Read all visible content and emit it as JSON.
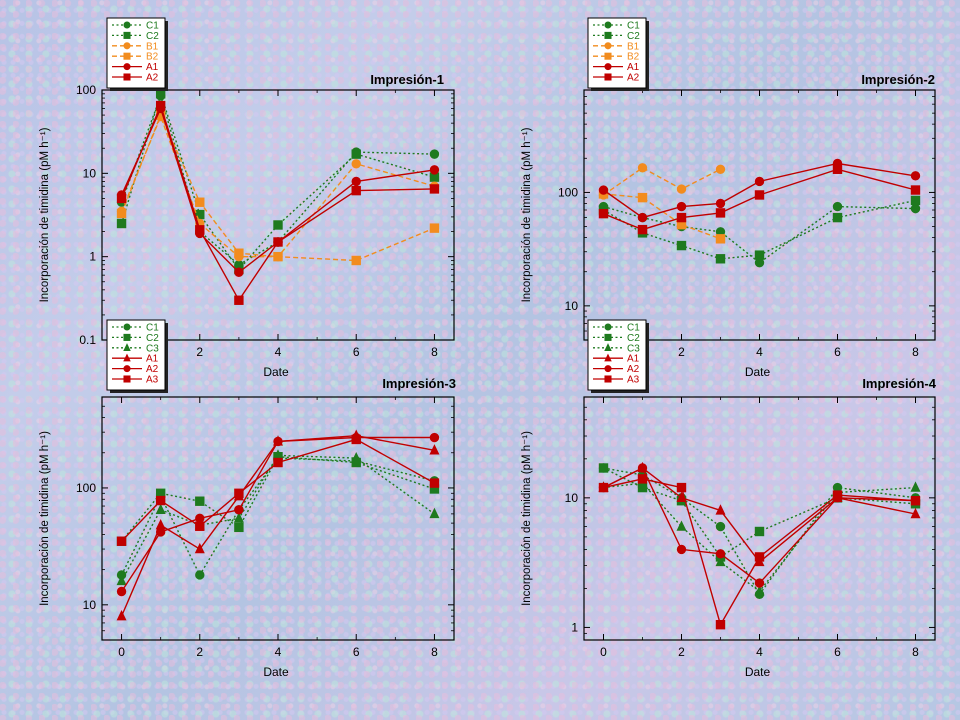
{
  "chart_data": [
    {
      "type": "line",
      "title": "Impresión-1",
      "xlabel": "Date",
      "ylabel": "Incorporación de timidina (pM h⁻¹)",
      "yscale": "log",
      "ylim": [
        0.1,
        100
      ],
      "xlim": [
        -0.5,
        8.5
      ],
      "xticks": [
        "2",
        "4",
        "6",
        "8"
      ],
      "yticks": [
        "0.1",
        "1",
        "10",
        "100"
      ],
      "legend_position": "top-left-above",
      "series": [
        {
          "name": "C1",
          "color": "#1e7a1e",
          "marker": "circle",
          "style": "dotted",
          "x": [
            0,
            1,
            2,
            3,
            4,
            6,
            8
          ],
          "y": [
            4.5,
            85,
            2.0,
            0.8,
            1.5,
            18,
            17
          ]
        },
        {
          "name": "C2",
          "color": "#1e7a1e",
          "marker": "square",
          "style": "dotted",
          "x": [
            0,
            1,
            2,
            3,
            4,
            6,
            8
          ],
          "y": [
            2.5,
            90,
            3.2,
            0.7,
            2.4,
            17,
            9
          ]
        },
        {
          "name": "B1",
          "color": "#f28c1e",
          "marker": "circle",
          "style": "dashed",
          "x": [
            0,
            1,
            2,
            3,
            4,
            6,
            8
          ],
          "y": [
            3.5,
            48,
            2.5,
            1.0,
            1.0,
            13,
            7
          ]
        },
        {
          "name": "B2",
          "color": "#f28c1e",
          "marker": "square",
          "style": "dashed",
          "x": [
            0,
            1,
            2,
            3,
            4,
            6,
            8
          ],
          "y": [
            3.3,
            50,
            4.5,
            1.1,
            1.0,
            0.9,
            2.2
          ]
        },
        {
          "name": "A1",
          "color": "#c00000",
          "marker": "circle",
          "style": "solid",
          "x": [
            0,
            1,
            2,
            3,
            4,
            6,
            8
          ],
          "y": [
            5.5,
            60,
            1.9,
            0.65,
            1.5,
            8,
            11
          ]
        },
        {
          "name": "A2",
          "color": "#c00000",
          "marker": "square",
          "style": "solid",
          "x": [
            0,
            1,
            2,
            3,
            4,
            6,
            8
          ],
          "y": [
            5.0,
            65,
            2.1,
            0.3,
            1.5,
            6.2,
            6.5
          ]
        }
      ]
    },
    {
      "type": "line",
      "title": "Impresión-2",
      "xlabel": "Date",
      "ylabel": "Incorporación de timidina (pM h⁻¹)",
      "yscale": "log",
      "ylim": [
        5,
        800
      ],
      "xlim": [
        -0.5,
        8.5
      ],
      "xticks": [
        "2",
        "4",
        "6",
        "8"
      ],
      "yticks": [
        "10",
        "100"
      ],
      "legend_position": "top-left-above",
      "series": [
        {
          "name": "C1",
          "color": "#1e7a1e",
          "marker": "circle",
          "style": "dotted",
          "x": [
            0,
            1,
            2,
            3,
            4,
            6,
            8
          ],
          "y": [
            75,
            60,
            50,
            45,
            24,
            75,
            72
          ]
        },
        {
          "name": "C2",
          "color": "#1e7a1e",
          "marker": "square",
          "style": "dotted",
          "x": [
            0,
            1,
            2,
            3,
            4,
            6,
            8
          ],
          "y": [
            70,
            44,
            34,
            26,
            28,
            60,
            85
          ]
        },
        {
          "name": "B1",
          "color": "#f28c1e",
          "marker": "circle",
          "style": "dashed",
          "x": [
            0,
            1,
            2,
            3
          ],
          "y": [
            95,
            165,
            107,
            160
          ]
        },
        {
          "name": "B2",
          "color": "#f28c1e",
          "marker": "square",
          "style": "dashed",
          "x": [
            0,
            1,
            2,
            3
          ],
          "y": [
            97,
            90,
            52,
            39
          ]
        },
        {
          "name": "A1",
          "color": "#c00000",
          "marker": "circle",
          "style": "solid",
          "x": [
            0,
            1,
            2,
            3,
            4,
            6,
            8
          ],
          "y": [
            105,
            60,
            75,
            80,
            125,
            180,
            140
          ]
        },
        {
          "name": "A2",
          "color": "#c00000",
          "marker": "square",
          "style": "solid",
          "x": [
            0,
            1,
            2,
            3,
            4,
            6,
            8
          ],
          "y": [
            65,
            47,
            60,
            66,
            95,
            160,
            105
          ]
        }
      ]
    },
    {
      "type": "line",
      "title": "Impresión-3",
      "xlabel": "Date",
      "ylabel": "Incorporación de timidina (pM h⁻¹)",
      "yscale": "log",
      "ylim": [
        5,
        600
      ],
      "xlim": [
        -0.5,
        8.5
      ],
      "xticks": [
        "0",
        "2",
        "4",
        "6",
        "8"
      ],
      "yticks": [
        "10",
        "100"
      ],
      "legend_position": "top-left-above",
      "series": [
        {
          "name": "C1",
          "color": "#1e7a1e",
          "marker": "circle",
          "style": "dotted",
          "x": [
            0,
            1,
            2,
            3,
            4,
            6,
            8
          ],
          "y": [
            18,
            85,
            18,
            65,
            180,
            170,
            115
          ]
        },
        {
          "name": "C2",
          "color": "#1e7a1e",
          "marker": "square",
          "style": "dotted",
          "x": [
            0,
            1,
            2,
            3,
            4,
            6,
            8
          ],
          "y": [
            35,
            90,
            77,
            46,
            185,
            165,
            98
          ]
        },
        {
          "name": "C3",
          "color": "#1e7a1e",
          "marker": "triangle",
          "style": "dotted",
          "x": [
            0,
            1,
            2,
            3,
            4,
            6,
            8
          ],
          "y": [
            16,
            65,
            48,
            55,
            190,
            180,
            60
          ]
        },
        {
          "name": "A1",
          "color": "#c00000",
          "marker": "triangle",
          "style": "solid",
          "x": [
            0,
            1,
            2,
            3,
            4,
            6,
            8
          ],
          "y": [
            8,
            48,
            30,
            85,
            250,
            280,
            210
          ]
        },
        {
          "name": "A2",
          "color": "#c00000",
          "marker": "circle",
          "style": "solid",
          "x": [
            0,
            1,
            2,
            3,
            4,
            6,
            8
          ],
          "y": [
            13,
            42,
            55,
            65,
            250,
            270,
            270
          ]
        },
        {
          "name": "A3",
          "color": "#c00000",
          "marker": "square",
          "style": "solid",
          "x": [
            0,
            1,
            2,
            3,
            4,
            6,
            8
          ],
          "y": [
            35,
            78,
            47,
            90,
            165,
            260,
            110
          ]
        }
      ]
    },
    {
      "type": "line",
      "title": "Impresión-4",
      "xlabel": "Date",
      "ylabel": "Incorporación de timidina (pM h⁻¹)",
      "yscale": "log",
      "ylim": [
        0.8,
        60
      ],
      "xlim": [
        -0.5,
        8.5
      ],
      "xticks": [
        "0",
        "2",
        "4",
        "6",
        "8"
      ],
      "yticks": [
        "1",
        "10"
      ],
      "legend_position": "top-left-above",
      "series": [
        {
          "name": "C1",
          "color": "#1e7a1e",
          "marker": "circle",
          "style": "dotted",
          "x": [
            0,
            1,
            2,
            3,
            4,
            6,
            8
          ],
          "y": [
            17,
            15,
            10,
            6,
            1.8,
            12,
            10
          ]
        },
        {
          "name": "C2",
          "color": "#1e7a1e",
          "marker": "square",
          "style": "dotted",
          "x": [
            0,
            1,
            2,
            3,
            4,
            6,
            8
          ],
          "y": [
            17,
            12,
            9.5,
            3.5,
            5.5,
            10,
            9
          ]
        },
        {
          "name": "C3",
          "color": "#1e7a1e",
          "marker": "triangle",
          "style": "dotted",
          "x": [
            0,
            1,
            2,
            3,
            4,
            6,
            8
          ],
          "y": [
            12,
            13,
            6,
            3.2,
            1.9,
            11,
            12
          ]
        },
        {
          "name": "A1",
          "color": "#c00000",
          "marker": "triangle",
          "style": "solid",
          "x": [
            0,
            1,
            2,
            3,
            4,
            6,
            8
          ],
          "y": [
            12,
            17,
            10,
            8,
            3.2,
            10,
            7.5
          ]
        },
        {
          "name": "A2",
          "color": "#c00000",
          "marker": "circle",
          "style": "solid",
          "x": [
            0,
            1,
            2,
            3,
            4,
            6,
            8
          ],
          "y": [
            12,
            17,
            4,
            3.7,
            2.2,
            10,
            9.5
          ]
        },
        {
          "name": "A3",
          "color": "#c00000",
          "marker": "square",
          "style": "solid",
          "x": [
            0,
            1,
            2,
            3,
            4,
            6,
            8
          ],
          "y": [
            12,
            14,
            12,
            1.05,
            3.5,
            10.5,
            9.5
          ]
        }
      ]
    }
  ]
}
